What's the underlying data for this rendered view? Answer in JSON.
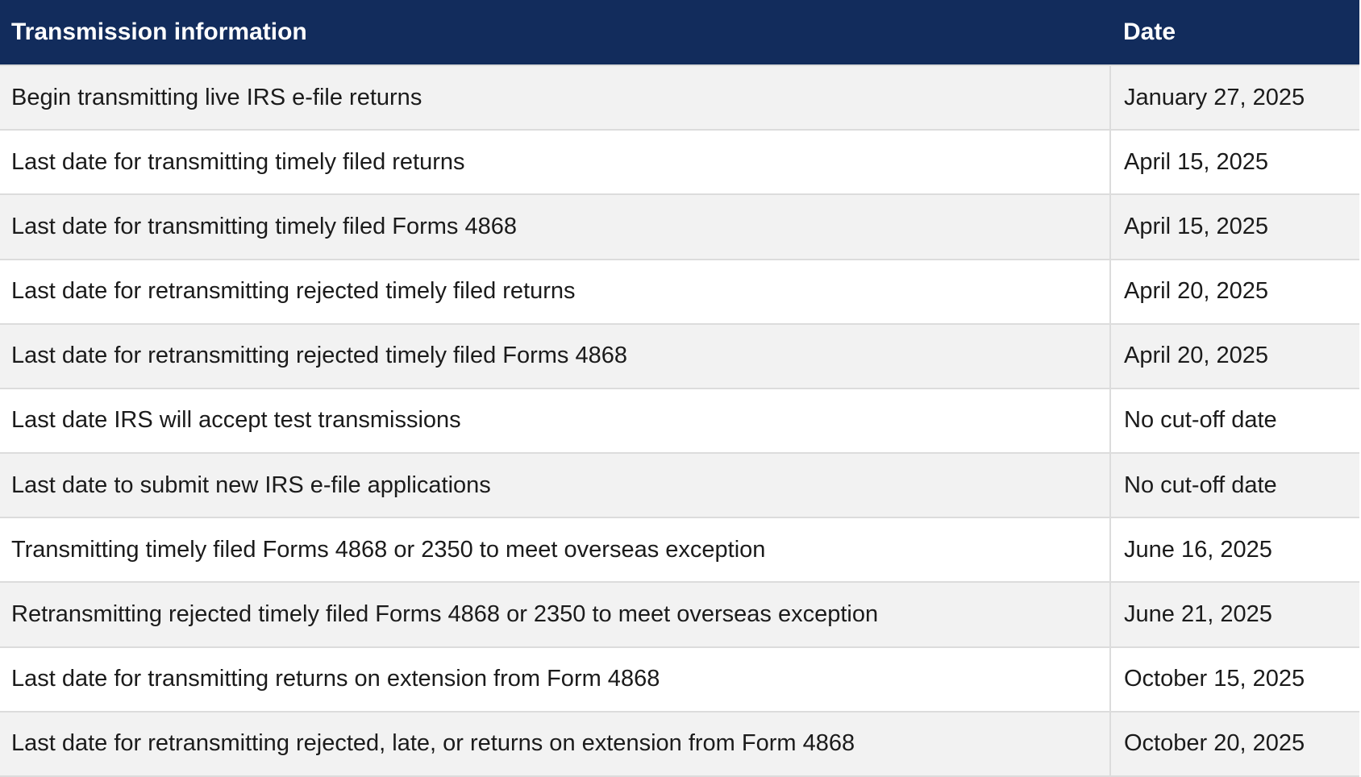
{
  "table": {
    "columns": [
      {
        "label": "Transmission information"
      },
      {
        "label": "Date"
      }
    ],
    "rows": [
      {
        "info": "Begin transmitting live IRS e-file returns",
        "date": "January 27, 2025"
      },
      {
        "info": "Last date for transmitting timely filed returns",
        "date": "April 15, 2025"
      },
      {
        "info": "Last date for transmitting timely filed Forms 4868",
        "date": "April 15, 2025"
      },
      {
        "info": "Last date for retransmitting rejected timely filed returns",
        "date": "April 20, 2025"
      },
      {
        "info": "Last date for retransmitting rejected timely filed Forms 4868",
        "date": "April 20, 2025"
      },
      {
        "info": "Last date IRS will accept test transmissions",
        "date": "No cut-off date"
      },
      {
        "info": "Last date to submit new IRS e-file applications",
        "date": "No cut-off date"
      },
      {
        "info": "Transmitting timely filed Forms 4868 or 2350 to meet overseas exception",
        "date": "June 16, 2025"
      },
      {
        "info": "Retransmitting rejected timely filed Forms 4868 or 2350 to meet overseas exception",
        "date": "June 21, 2025"
      },
      {
        "info": "Last date for transmitting returns on extension from Form 4868",
        "date": "October 15, 2025"
      },
      {
        "info": "Last date for retransmitting rejected, late, or returns on extension from Form 4868",
        "date": "October 20, 2025"
      }
    ],
    "colors": {
      "header_bg": "#122c5c",
      "header_text": "#ffffff",
      "row_bg": "#ffffff",
      "row_alt_bg": "#f2f2f2",
      "divider": "#dcdcdc",
      "body_text": "#1b1b1b"
    }
  }
}
